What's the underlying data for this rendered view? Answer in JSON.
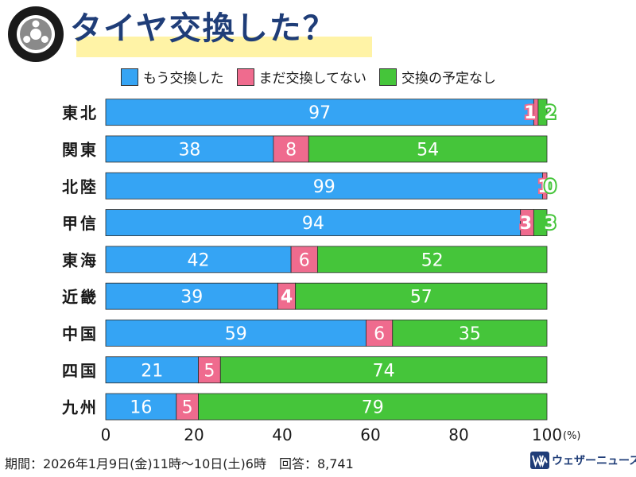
{
  "title": "タイヤ交換した？",
  "colors": {
    "exchanged": "#35a4f4",
    "planning": "#ef6b8e",
    "no_plan": "#45c53a",
    "title": "#1f3d78",
    "highlight": "#fff3a6"
  },
  "legend": [
    {
      "label": "もう交換した",
      "color": "#35a4f4"
    },
    {
      "label": "まだ交換してない",
      "color": "#ef6b8e"
    },
    {
      "label": "交換の予定なし",
      "color": "#45c53a"
    }
  ],
  "footer": "期間：2026年1月9日(金)11時〜10日(土)6時　回答：8,741",
  "logo_text": "ウェザーニュース",
  "chart_data": {
    "type": "bar",
    "stacked": true,
    "orientation": "horizontal",
    "categories": [
      "東北",
      "関東",
      "北陸",
      "甲信",
      "東海",
      "近畿",
      "中国",
      "四国",
      "九州"
    ],
    "series": [
      {
        "name": "もう交換した",
        "values": [
          97,
          38,
          99,
          94,
          42,
          39,
          59,
          21,
          16
        ]
      },
      {
        "name": "まだ交換してない",
        "values": [
          1,
          8,
          1,
          3,
          6,
          4,
          6,
          5,
          5
        ]
      },
      {
        "name": "交換の予定なし",
        "values": [
          2,
          54,
          0,
          3,
          52,
          57,
          35,
          74,
          79
        ]
      }
    ],
    "xlim": [
      0,
      100
    ],
    "xticks": [
      0,
      20,
      40,
      60,
      80,
      100
    ],
    "xunit": "(%)",
    "grid": false,
    "legend_position": "top"
  }
}
